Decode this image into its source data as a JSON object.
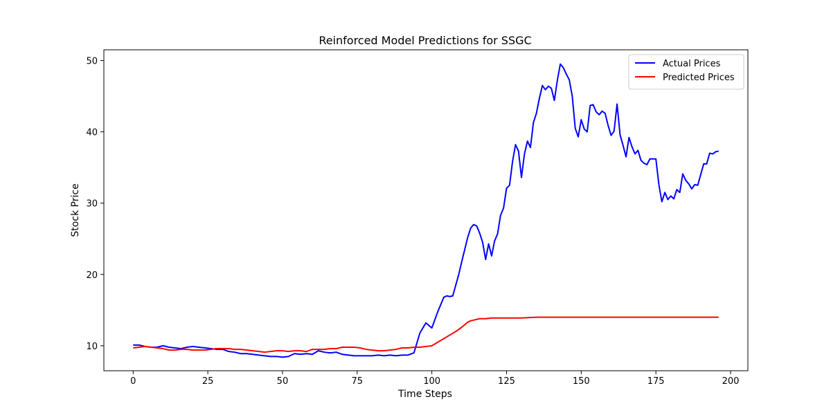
{
  "chart_data": {
    "type": "line",
    "title": "Reinforced Model Predictions for SSGC",
    "xlabel": "Time Steps",
    "ylabel": "Stock Price",
    "xlim": [
      -9.8,
      205.8
    ],
    "ylim": [
      6.5,
      51.5
    ],
    "xticks": [
      0,
      25,
      50,
      75,
      100,
      125,
      150,
      175,
      200
    ],
    "yticks": [
      10,
      20,
      30,
      40,
      50
    ],
    "grid": false,
    "legend_position": "top-right",
    "series": [
      {
        "name": "Actual Prices",
        "color": "#0000ff",
        "x": [
          0,
          2,
          4,
          6,
          8,
          10,
          12,
          14,
          16,
          18,
          20,
          22,
          24,
          26,
          28,
          30,
          32,
          34,
          36,
          38,
          40,
          42,
          44,
          46,
          48,
          50,
          52,
          54,
          56,
          58,
          60,
          62,
          64,
          66,
          68,
          70,
          72,
          74,
          76,
          78,
          80,
          82,
          84,
          86,
          88,
          90,
          92,
          94,
          96,
          98,
          100,
          102,
          104,
          105,
          106,
          107,
          108,
          109,
          110,
          111,
          112,
          113,
          114,
          115,
          116,
          117,
          118,
          119,
          120,
          121,
          122,
          123,
          124,
          125,
          126,
          127,
          128,
          129,
          130,
          131,
          132,
          133,
          134,
          135,
          136,
          137,
          138,
          139,
          140,
          141,
          142,
          143,
          144,
          145,
          146,
          147,
          148,
          149,
          150,
          151,
          152,
          153,
          154,
          155,
          156,
          157,
          158,
          159,
          160,
          161,
          162,
          163,
          164,
          165,
          166,
          167,
          168,
          169,
          170,
          171,
          172,
          173,
          174,
          175,
          176,
          177,
          178,
          179,
          180,
          181,
          182,
          183,
          184,
          185,
          186,
          187,
          188,
          189,
          190,
          191,
          192,
          193,
          194,
          195,
          196
        ],
        "values": [
          10.1,
          10.1,
          9.9,
          9.8,
          9.8,
          10.0,
          9.8,
          9.7,
          9.6,
          9.8,
          9.9,
          9.8,
          9.7,
          9.6,
          9.5,
          9.5,
          9.2,
          9.1,
          8.9,
          8.9,
          8.8,
          8.7,
          8.6,
          8.5,
          8.5,
          8.4,
          8.5,
          8.9,
          8.8,
          8.9,
          8.8,
          9.3,
          9.1,
          9.0,
          9.1,
          8.8,
          8.7,
          8.6,
          8.6,
          8.6,
          8.6,
          8.7,
          8.6,
          8.7,
          8.6,
          8.7,
          8.7,
          9.0,
          11.8,
          13.2,
          12.5,
          14.8,
          16.8,
          17.0,
          16.9,
          17.0,
          18.5,
          20.0,
          21.8,
          23.5,
          25.2,
          26.5,
          27.0,
          26.8,
          25.8,
          24.5,
          22.1,
          24.3,
          22.6,
          24.7,
          25.7,
          28.3,
          29.3,
          32.1,
          32.5,
          35.8,
          38.2,
          37.3,
          33.6,
          36.9,
          38.7,
          37.8,
          41.3,
          42.6,
          44.7,
          46.5,
          45.9,
          46.4,
          46.1,
          44.4,
          47.2,
          49.5,
          49.0,
          48.1,
          47.3,
          45.0,
          40.5,
          39.3,
          41.7,
          40.4,
          40.0,
          43.7,
          43.8,
          42.8,
          42.4,
          42.9,
          42.6,
          40.9,
          39.5,
          40.1,
          43.9,
          39.6,
          38.1,
          36.5,
          39.2,
          37.9,
          36.9,
          37.4,
          36.0,
          35.6,
          35.4,
          36.2,
          36.2,
          36.2,
          32.6,
          30.2,
          31.5,
          30.5,
          31.0,
          30.6,
          31.9,
          31.5,
          34.1,
          33.2,
          32.7,
          32.0,
          32.6,
          32.5,
          34.0,
          35.5,
          35.5,
          37.0,
          36.9,
          37.2,
          37.3
        ]
      },
      {
        "name": "Predicted Prices",
        "color": "#ff0000",
        "x": [
          0,
          2,
          4,
          6,
          8,
          10,
          12,
          14,
          16,
          18,
          20,
          22,
          24,
          26,
          28,
          30,
          32,
          34,
          36,
          38,
          40,
          42,
          44,
          46,
          48,
          50,
          52,
          54,
          56,
          58,
          60,
          62,
          64,
          66,
          68,
          70,
          72,
          74,
          76,
          78,
          80,
          82,
          84,
          86,
          88,
          90,
          92,
          94,
          96,
          98,
          100,
          102,
          104,
          106,
          108,
          110,
          112,
          113,
          114,
          116,
          118,
          120,
          125,
          130,
          135,
          140,
          145,
          150,
          155,
          160,
          165,
          170,
          175,
          180,
          185,
          190,
          196
        ],
        "values": [
          9.7,
          9.8,
          9.9,
          9.8,
          9.7,
          9.6,
          9.4,
          9.4,
          9.5,
          9.5,
          9.4,
          9.4,
          9.4,
          9.5,
          9.6,
          9.6,
          9.6,
          9.5,
          9.5,
          9.4,
          9.3,
          9.2,
          9.1,
          9.2,
          9.3,
          9.3,
          9.2,
          9.3,
          9.3,
          9.2,
          9.5,
          9.5,
          9.5,
          9.6,
          9.6,
          9.8,
          9.8,
          9.8,
          9.7,
          9.5,
          9.4,
          9.3,
          9.3,
          9.4,
          9.5,
          9.7,
          9.7,
          9.8,
          9.8,
          9.9,
          10.0,
          10.5,
          11.0,
          11.5,
          12.0,
          12.6,
          13.3,
          13.5,
          13.6,
          13.8,
          13.8,
          13.9,
          13.9,
          13.9,
          14.0,
          14.0,
          14.0,
          14.0,
          14.0,
          14.0,
          14.0,
          14.0,
          14.0,
          14.0,
          14.0,
          14.0,
          14.0
        ]
      }
    ]
  }
}
